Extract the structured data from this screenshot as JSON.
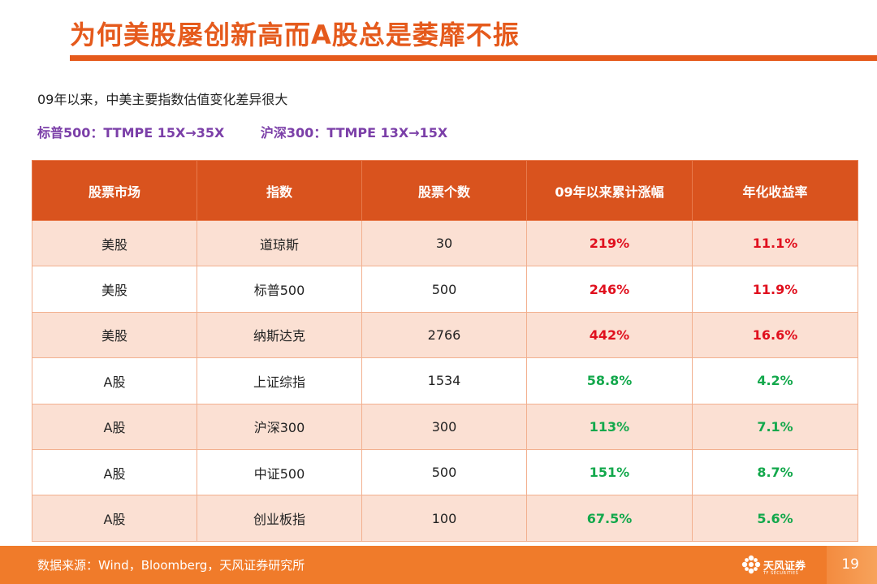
{
  "header": {
    "title": "为何美股屡创新高而A股总是萎靡不振"
  },
  "intro": {
    "line1": "09年以来，中美主要指数估值变化差异很大",
    "line2": "标普500：TTMPE 15X→35X        沪深300：TTMPE 13X→15X"
  },
  "table": {
    "headers": [
      "股票市场",
      "指数",
      "股票个数",
      "09年以来累计涨幅",
      "年化收益率"
    ],
    "rows": [
      {
        "market": "美股",
        "index": "道琼斯",
        "count": "30",
        "gain": "219%",
        "annual": "11.1%",
        "tone": "red"
      },
      {
        "market": "美股",
        "index": "标普500",
        "count": "500",
        "gain": "246%",
        "annual": "11.9%",
        "tone": "red"
      },
      {
        "market": "美股",
        "index": "纳斯达克",
        "count": "2766",
        "gain": "442%",
        "annual": "16.6%",
        "tone": "red"
      },
      {
        "market": "A股",
        "index": "上证综指",
        "count": "1534",
        "gain": "58.8%",
        "annual": "4.2%",
        "tone": "green"
      },
      {
        "market": "A股",
        "index": "沪深300",
        "count": "300",
        "gain": "113%",
        "annual": "7.1%",
        "tone": "green"
      },
      {
        "market": "A股",
        "index": "中证500",
        "count": "500",
        "gain": "151%",
        "annual": "8.7%",
        "tone": "green"
      },
      {
        "market": "A股",
        "index": "创业板指",
        "count": "100",
        "gain": "67.5%",
        "annual": "5.6%",
        "tone": "green"
      }
    ]
  },
  "footer": {
    "source": "数据来源：Wind，Bloomberg，天风证券研究所",
    "logo_text": "天风证券",
    "logo_sub": "TF SECURITIES",
    "page_number": "19"
  },
  "colors": {
    "accent": "#e55a1c",
    "header_fill": "#d9531e",
    "row_tint": "#fbe0d3",
    "positive_red": "#e0101e",
    "positive_green": "#13a84c",
    "highlight_purple": "#7b3fa8",
    "footer_bar": "#f07b2a"
  },
  "icons": {
    "logo": "tf-flower-logo-icon"
  }
}
